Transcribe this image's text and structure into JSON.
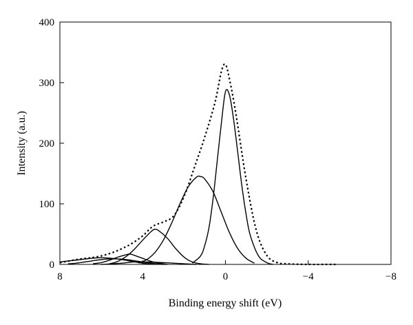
{
  "chart_data": {
    "type": "line",
    "xlabel": "Binding energy shift (eV)",
    "ylabel": "Intensity (a.u.)",
    "xlim": [
      8,
      -8
    ],
    "ylim": [
      0,
      400
    ],
    "x_reversed": true,
    "x_ticks": [
      8,
      4,
      0,
      -4,
      -8
    ],
    "x_tick_labels": [
      "8",
      "4",
      "0",
      "−4",
      "−8"
    ],
    "y_ticks": [
      0,
      100,
      200,
      300,
      400
    ],
    "y_tick_labels": [
      "0",
      "100",
      "200",
      "300",
      "400"
    ],
    "grid": false,
    "legend": "none",
    "series": [
      {
        "style": "dotted",
        "color": "#000000",
        "x": [
          8.0,
          7.5,
          7.0,
          6.5,
          6.0,
          5.5,
          5.0,
          4.5,
          4.0,
          3.5,
          3.0,
          2.5,
          2.0,
          1.5,
          1.0,
          0.5,
          0.2,
          0.0,
          -0.2,
          -0.5,
          -1.0,
          -1.5,
          -2.0,
          -2.5,
          -3.0,
          -4.0,
          -5.0,
          -5.4
        ],
        "y": [
          3,
          6,
          9,
          11,
          14,
          19,
          26,
          35,
          47,
          63,
          70,
          80,
          112,
          160,
          210,
          268,
          318,
          330,
          305,
          250,
          140,
          55,
          15,
          3,
          1,
          0,
          0,
          0
        ]
      },
      {
        "style": "solid",
        "color": "#000000",
        "x": [
          1.6,
          1.2,
          1.0,
          0.8,
          0.6,
          0.4,
          0.2,
          0.0,
          -0.2,
          -0.4,
          -0.6,
          -0.8,
          -1.0,
          -1.2,
          -1.6,
          -2.0,
          -2.3
        ],
        "y": [
          2,
          14,
          31,
          60,
          108,
          170,
          232,
          285,
          279,
          238,
          184,
          128,
          82,
          48,
          14,
          3,
          0
        ]
      },
      {
        "style": "solid",
        "color": "#000000",
        "x": [
          4.2,
          3.8,
          3.4,
          3.0,
          2.6,
          2.2,
          1.8,
          1.4,
          1.2,
          1.0,
          0.6,
          0.2,
          -0.2,
          -0.6,
          -1.0,
          -1.4
        ],
        "y": [
          2,
          8,
          20,
          40,
          68,
          100,
          128,
          144,
          145,
          141,
          120,
          86,
          52,
          26,
          10,
          2
        ]
      },
      {
        "style": "solid",
        "color": "#000000",
        "x": [
          5.6,
          5.2,
          4.8,
          4.4,
          4.0,
          3.6,
          3.4,
          3.2,
          2.8,
          2.4,
          2.0,
          1.6,
          1.2,
          0.8
        ],
        "y": [
          1,
          5,
          13,
          25,
          40,
          54,
          58,
          55,
          43,
          26,
          12,
          4,
          1,
          0
        ]
      },
      {
        "style": "solid",
        "color": "#000000",
        "x": [
          6.4,
          6.0,
          5.6,
          5.2,
          4.8,
          4.6,
          4.4,
          4.0,
          3.6,
          3.2,
          2.8
        ],
        "y": [
          1,
          3,
          7,
          12,
          16,
          17,
          15,
          10,
          5,
          2,
          0
        ]
      },
      {
        "style": "solid",
        "color": "#000000",
        "x": [
          7.6,
          7.2,
          6.8,
          6.4,
          6.0,
          5.6,
          5.2,
          4.8,
          4.4,
          4.0,
          3.6,
          3.0
        ],
        "y": [
          1,
          2,
          4,
          6,
          8,
          9,
          9,
          8,
          6,
          4,
          2,
          0
        ]
      },
      {
        "style": "solid",
        "color": "#000000",
        "x": [
          8.0,
          7.5,
          7.0,
          6.5,
          6.0,
          5.5,
          5.0,
          4.5,
          4.0,
          3.5
        ],
        "y": [
          4,
          6,
          8,
          10,
          11,
          10,
          8,
          5,
          2,
          0
        ]
      },
      {
        "style": "solid",
        "color": "#000000",
        "x": [
          6.0,
          5.0,
          4.5,
          4.0,
          3.0,
          2.0,
          1.4
        ],
        "y": [
          0,
          2,
          4,
          4,
          3,
          1,
          0
        ]
      }
    ]
  }
}
